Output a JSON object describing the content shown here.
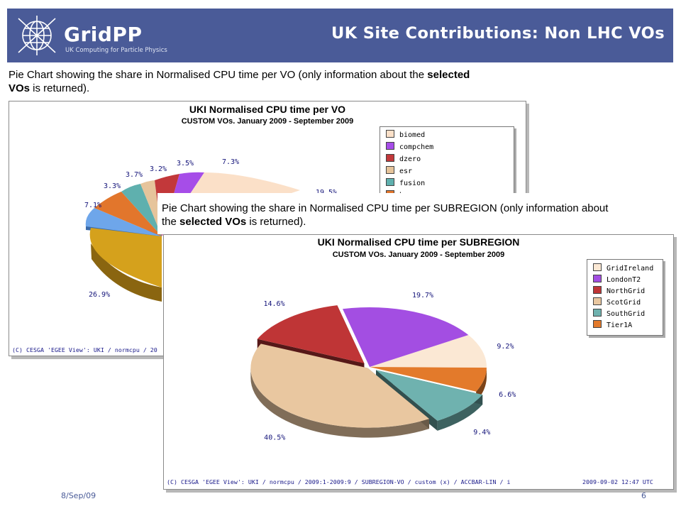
{
  "header": {
    "logo_name": "GridPP",
    "logo_tagline": "UK Computing for Particle Physics",
    "title": "UK Site Contributions: Non LHC VOs"
  },
  "colors": {
    "header_bg": "#4a5b98",
    "biomed": "#fbe0c8",
    "compchem": "#a64de8",
    "dzero": "#c2383a",
    "esr": "#e6c49b",
    "fusion": "#5fb0ae",
    "hone": "#e2762c",
    "other_blue": "#6ea6ea",
    "other_gold": "#d5a11c",
    "GridIreland": "#fbe8d4",
    "LondonT2": "#a34ee2",
    "NorthGrid": "#bf3536",
    "ScotGrid": "#e9c7a0",
    "SouthGrid": "#6fb2af",
    "Tier1A": "#e37a2b"
  },
  "caption_vo": {
    "text": "Pie Chart showing the share in Normalised CPU time per VO (only information about the ",
    "bold1": "selected",
    "bold2": "VOs",
    "tail": " is returned)."
  },
  "caption_sub": {
    "text": "Pie Chart showing the share in Normalised CPU time per SUBREGION (only information about",
    "text2": "the ",
    "bold": "selected VOs",
    "tail": " is returned)."
  },
  "chart_data": [
    {
      "type": "pie",
      "title": "UKI Normalised CPU time per VO",
      "subtitle": "CUSTOM VOs. January 2009 - September 2009",
      "legend": [
        "biomed",
        "compchem",
        "dzero",
        "esr",
        "fusion",
        "hone"
      ],
      "visible_labels": [
        "7.3%",
        "19.5%",
        "3.5%",
        "3.2%",
        "3.7%",
        "3.3%",
        "7.1%",
        "26.9%"
      ],
      "credit": "(C) CESGA 'EGEE View': UKI / normcpu / 20"
    },
    {
      "type": "pie",
      "title": "UKI Normalised CPU time per SUBREGION",
      "subtitle": "CUSTOM VOs. January 2009 - September 2009",
      "slices": [
        {
          "name": "GridIreland",
          "value": 9.2,
          "label": "9.2%"
        },
        {
          "name": "Tier1A",
          "value": 6.6,
          "label": "6.6%"
        },
        {
          "name": "SouthGrid",
          "value": 9.4,
          "label": "9.4%"
        },
        {
          "name": "ScotGrid",
          "value": 40.5,
          "label": "40.5%"
        },
        {
          "name": "NorthGrid",
          "value": 14.6,
          "label": "14.6%"
        },
        {
          "name": "LondonT2",
          "value": 19.7,
          "label": "19.7%"
        }
      ],
      "legend": [
        "GridIreland",
        "LondonT2",
        "NorthGrid",
        "ScotGrid",
        "SouthGrid",
        "Tier1A"
      ],
      "credit": "(C) CESGA 'EGEE View': UKI / normcpu / 2009:1-2009:9 / SUBREGION-VO / custom (x) / ACCBAR-LIN / i",
      "timestamp": "2009-09-02 12:47 UTC"
    }
  ],
  "footer": {
    "date": "8/Sep/09",
    "page": "6"
  }
}
